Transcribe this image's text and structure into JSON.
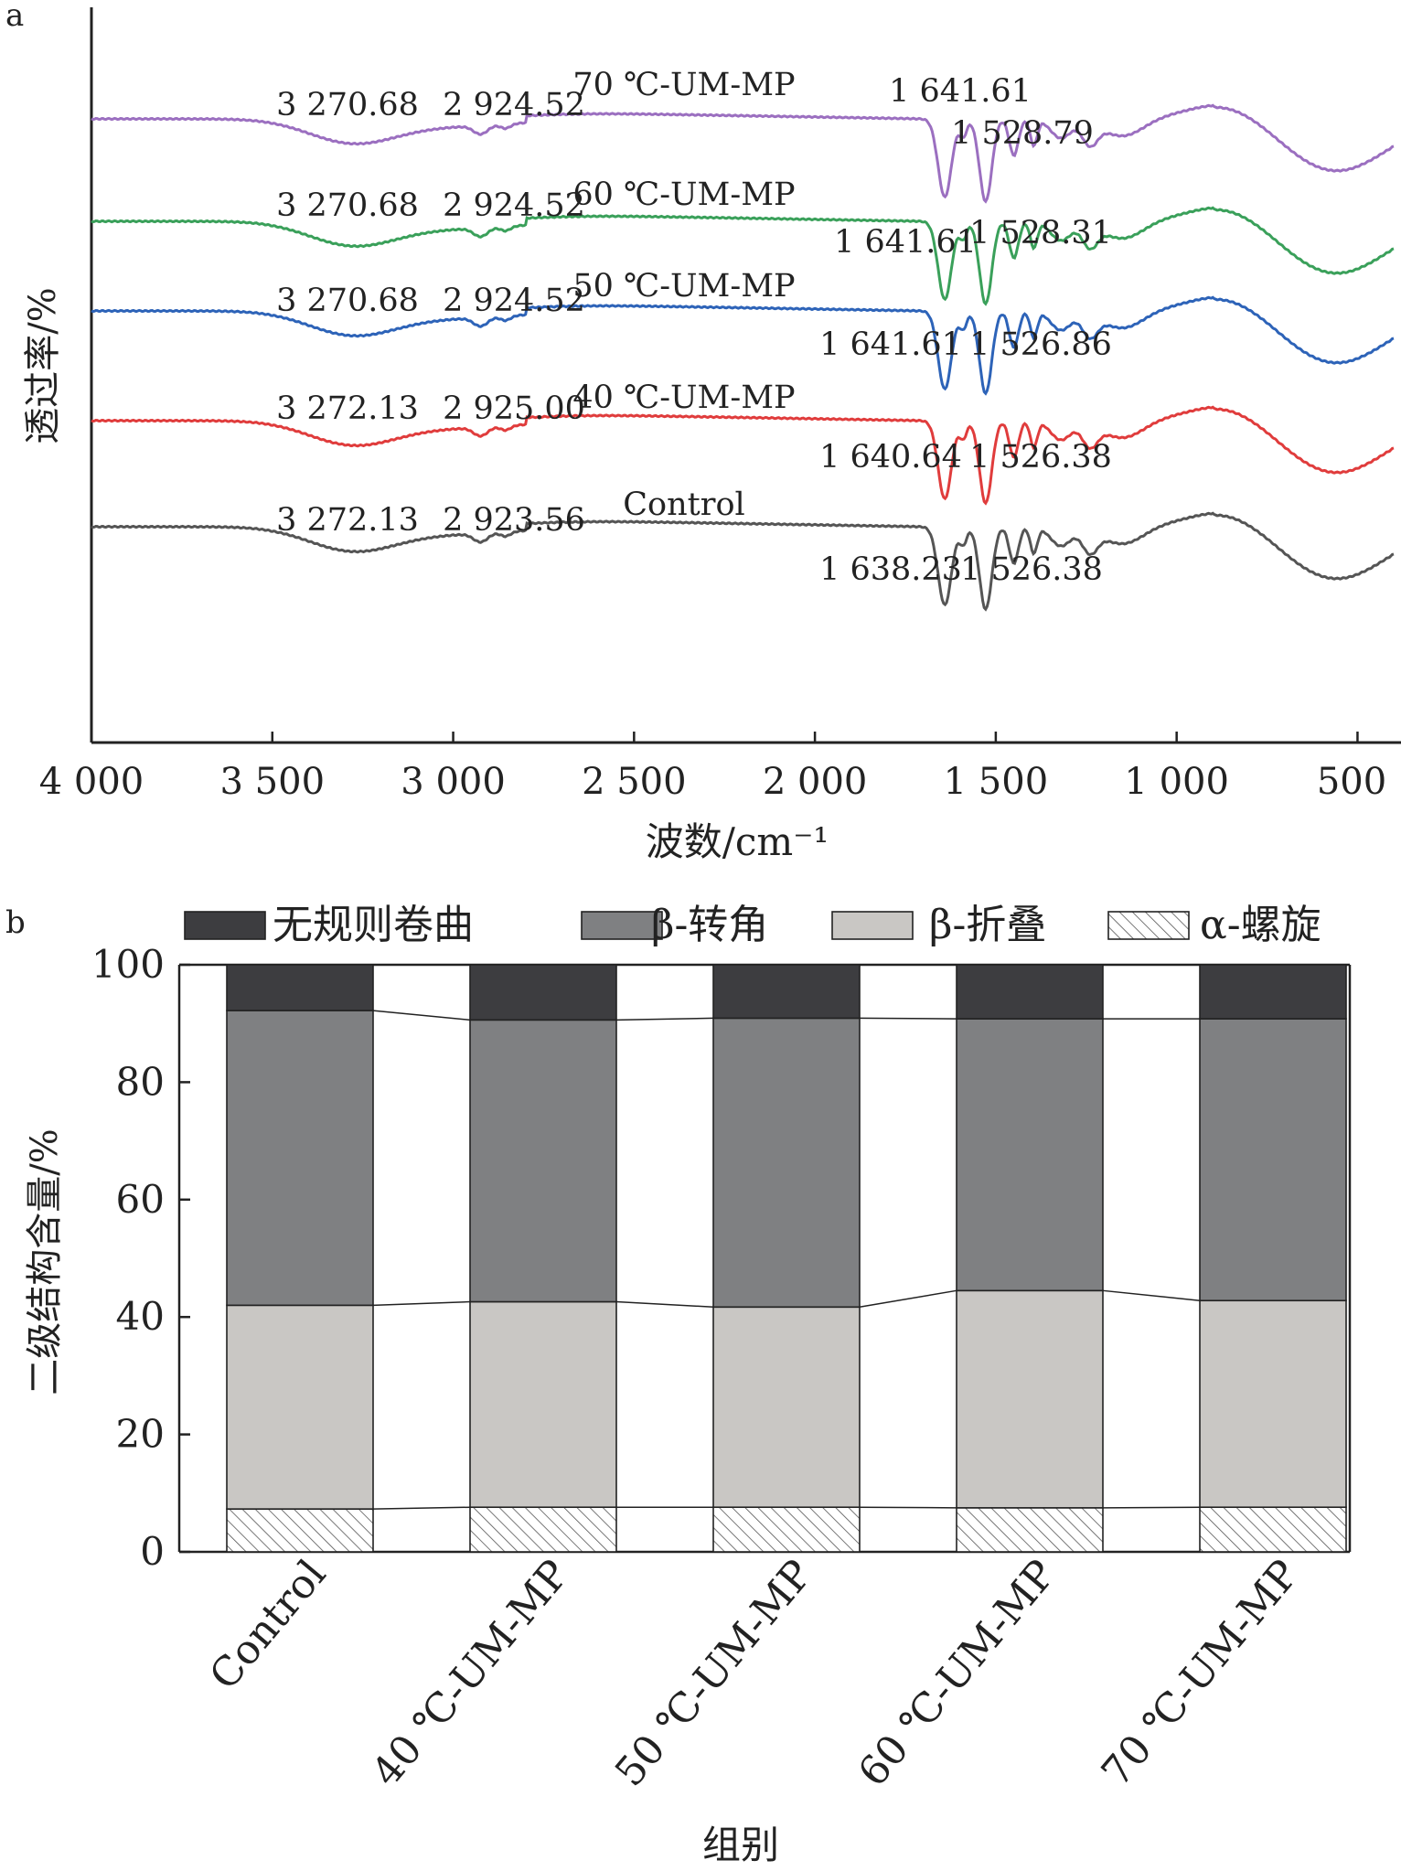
{
  "chart_data": [
    {
      "panel": "a",
      "type": "line",
      "xlabel": "波数/cm⁻¹",
      "ylabel": "透过率/%",
      "x_ticks": [
        4000,
        3500,
        3000,
        2500,
        2000,
        1500,
        1000,
        500
      ],
      "x_tick_labels": [
        "4 000",
        "3 500",
        "3 000",
        "2 500",
        "2 000",
        "1 500",
        "1 000",
        "500"
      ],
      "xlim": [
        4000,
        400
      ],
      "series": [
        {
          "name": "70 ℃-UM-MP",
          "color": "#9b6fc0",
          "offset": 5,
          "peaks": [
            {
              "x": 3270.68,
              "label": "3 270.68"
            },
            {
              "x": 2924.52,
              "label": "2 924.52"
            },
            {
              "x": 1641.61,
              "label": "1 641.61"
            },
            {
              "x": 1528.79,
              "label": "1 528.79"
            }
          ]
        },
        {
          "name": "60 ℃-UM-MP",
          "color": "#3aa05a",
          "offset": 4,
          "peaks": [
            {
              "x": 3270.68,
              "label": "3 270.68"
            },
            {
              "x": 2924.52,
              "label": "2 924.52"
            },
            {
              "x": 1641.61,
              "label": "1 641.61"
            },
            {
              "x": 1528.31,
              "label": "1 528.31"
            }
          ]
        },
        {
          "name": "50 ℃-UM-MP",
          "color": "#2d63b8",
          "offset": 3,
          "peaks": [
            {
              "x": 3270.68,
              "label": "3 270.68"
            },
            {
              "x": 2924.52,
              "label": "2 924.52"
            },
            {
              "x": 1641.61,
              "label": "1 641.61"
            },
            {
              "x": 1526.86,
              "label": "1 526.86"
            }
          ]
        },
        {
          "name": "40 ℃-UM-MP",
          "color": "#e03c3c",
          "offset": 2,
          "peaks": [
            {
              "x": 3272.13,
              "label": "3 272.13"
            },
            {
              "x": 2925.0,
              "label": "2 925.00"
            },
            {
              "x": 1640.64,
              "label": "1 640.64"
            },
            {
              "x": 1526.38,
              "label": "1 526.38"
            }
          ]
        },
        {
          "name": "Control",
          "color": "#555555",
          "offset": 1,
          "peaks": [
            {
              "x": 3272.13,
              "label": "3 272.13"
            },
            {
              "x": 2923.56,
              "label": "2 923.56"
            },
            {
              "x": 1638.23,
              "label": "1 638.23"
            },
            {
              "x": 1526.38,
              "label": "1 526.38"
            }
          ]
        }
      ]
    },
    {
      "panel": "b",
      "type": "bar",
      "stacked": true,
      "xlabel": "组别",
      "ylabel": "二级结构含量/%",
      "ylim": [
        0,
        100
      ],
      "y_ticks": [
        0,
        20,
        40,
        60,
        80,
        100
      ],
      "categories": [
        "Control",
        "40 ℃-UM-MP",
        "50 ℃-UM-MP",
        "60 ℃-UM-MP",
        "70 ℃-UM-MP"
      ],
      "series": [
        {
          "name": "α-螺旋",
          "fill": "hatch",
          "values": [
            7.3,
            7.6,
            7.6,
            7.5,
            7.6
          ]
        },
        {
          "name": "β-折叠",
          "fill": "#c9c7c4",
          "values": [
            34.7,
            35.0,
            34.1,
            37.0,
            35.2
          ]
        },
        {
          "name": "β-转角",
          "fill": "#7f8082",
          "values": [
            50.2,
            48.0,
            49.2,
            46.3,
            48.0
          ]
        },
        {
          "name": "无规则卷曲",
          "fill": "#3d3d40",
          "values": [
            7.8,
            9.4,
            9.1,
            9.2,
            9.2
          ]
        }
      ],
      "legend_order": [
        "无规则卷曲",
        "β-转角",
        "β-折叠",
        "α-螺旋"
      ]
    }
  ],
  "panels": {
    "a_label": "a",
    "b_label": "b"
  }
}
